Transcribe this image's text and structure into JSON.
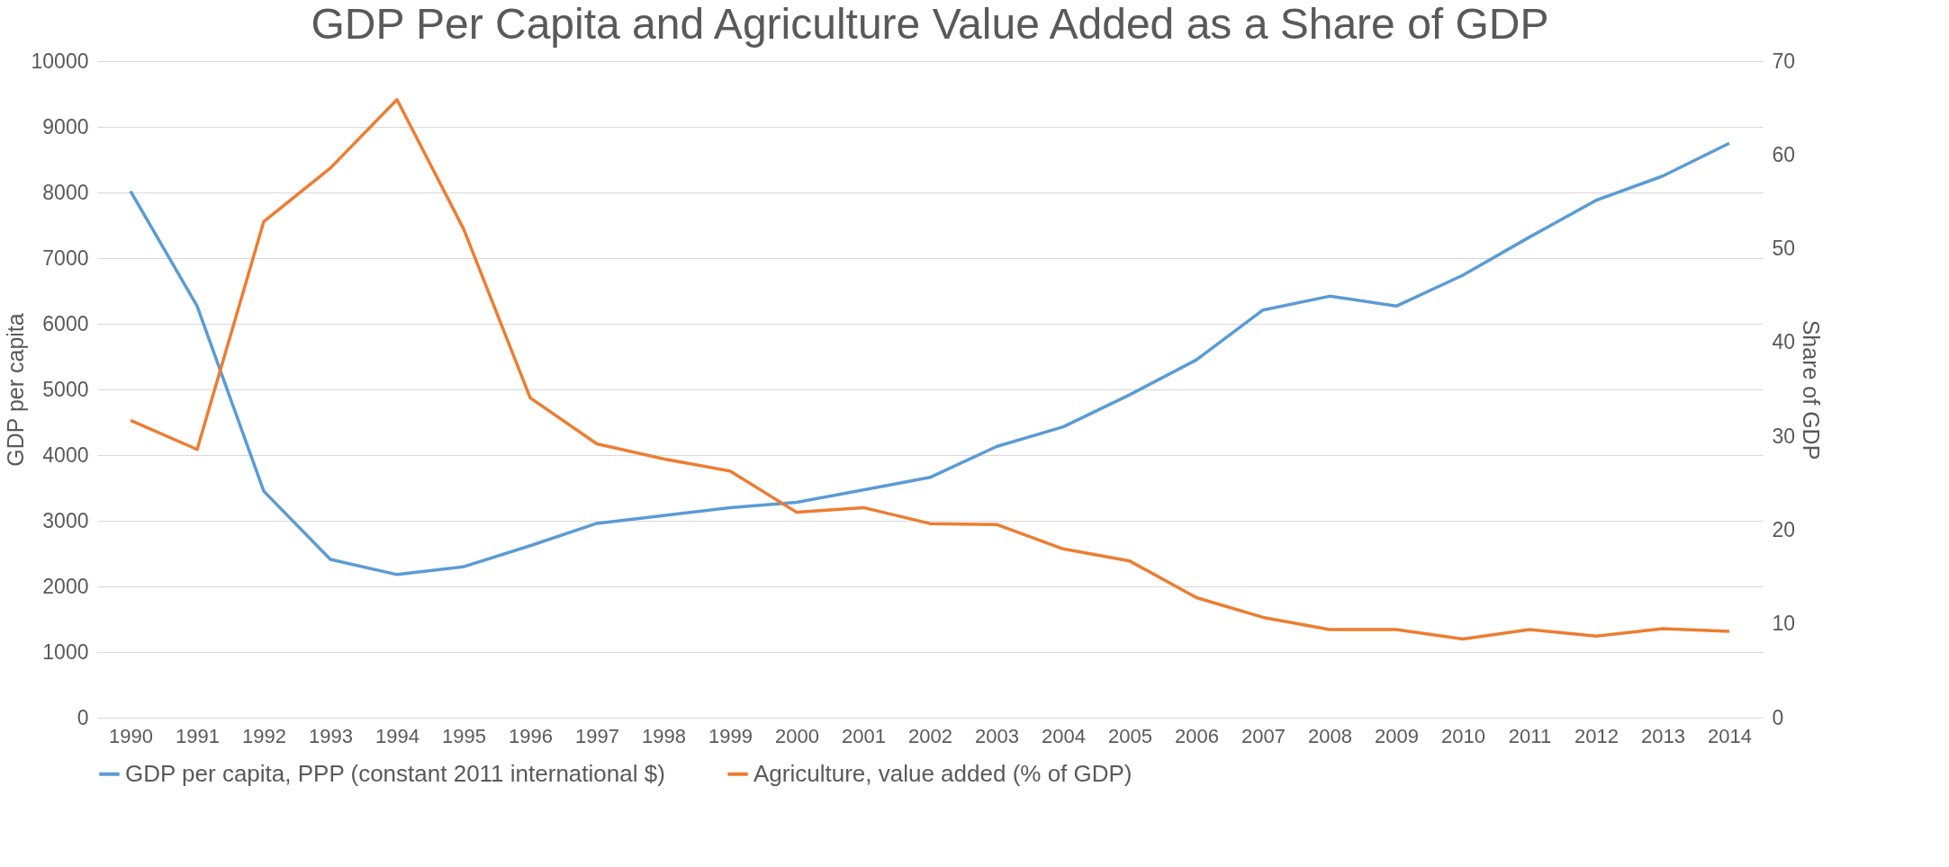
{
  "chart_data": {
    "type": "line",
    "title": "GDP Per Capita and Agriculture Value Added as a Share of GDP",
    "ylabel": "GDP per capita",
    "y2label": "Share of GDP",
    "categories": [
      "1990",
      "1991",
      "1992",
      "1993",
      "1994",
      "1995",
      "1996",
      "1997",
      "1998",
      "1999",
      "2000",
      "2001",
      "2002",
      "2003",
      "2004",
      "2005",
      "2006",
      "2007",
      "2008",
      "2009",
      "2010",
      "2011",
      "2012",
      "2013",
      "2014"
    ],
    "series": [
      {
        "name": "GDP per capita, PPP (constant 2011 international $)",
        "color": "#5b9bd5",
        "values": [
          8020,
          6270,
          3450,
          2410,
          2180,
          2300,
          2620,
          2960,
          3080,
          3200,
          3280,
          3470,
          3660,
          4130,
          4430,
          4920,
          5450,
          6210,
          6420,
          6270,
          6740,
          7320,
          7880,
          8250,
          8750
        ]
      },
      {
        "name": "Agriculture, value added (% of GDP)",
        "color": "#ed7d31",
        "axis": "y2",
        "values": [
          31.7,
          28.6,
          52.9,
          58.6,
          65.9,
          52.1,
          34.1,
          29.2,
          27.6,
          26.3,
          21.9,
          22.4,
          20.7,
          20.6,
          18.0,
          16.7,
          12.8,
          10.7,
          9.4,
          9.4,
          8.4,
          9.4,
          8.7,
          9.5,
          9.2
        ]
      }
    ],
    "ylim": [
      0,
      10000
    ],
    "yticks": [
      0,
      1000,
      2000,
      3000,
      4000,
      5000,
      6000,
      7000,
      8000,
      9000,
      10000
    ],
    "y2lim": [
      0,
      70
    ],
    "y2ticks": [
      0,
      10,
      20,
      30,
      40,
      50,
      60,
      70
    ],
    "grid": "y",
    "legend": "bottom",
    "marker": "none",
    "line_style": "solid"
  }
}
